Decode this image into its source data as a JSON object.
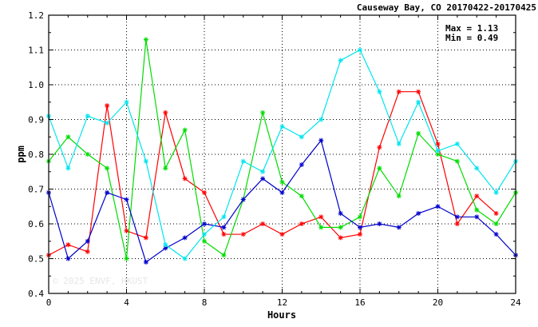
{
  "chart_data": {
    "type": "line",
    "title": "Causeway Bay, CO 20170422-20170425",
    "xlabel": "Hours",
    "ylabel": "ppm",
    "xlim": [
      0,
      24
    ],
    "ylim": [
      0.4,
      1.2
    ],
    "x_ticks": [
      "0",
      "4",
      "8",
      "12",
      "16",
      "20",
      "24"
    ],
    "y_ticks": [
      "0.4",
      "0.5",
      "0.6",
      "0.7",
      "0.8",
      "0.9",
      "1.0",
      "1.1",
      "1.2"
    ],
    "grid": true,
    "stats": {
      "max": "Max = 1.13",
      "min": "Min = 0.49"
    },
    "watermark": "© 2025 ENVF, HKUST",
    "series": [
      {
        "color": "#ff0000",
        "values": [
          0.51,
          0.54,
          0.52,
          0.94,
          0.58,
          0.56,
          0.92,
          0.73,
          0.69,
          0.57,
          0.57,
          0.6,
          0.57,
          0.6,
          0.62,
          0.56,
          0.57,
          0.82,
          0.98,
          0.98,
          0.83,
          0.6,
          0.68,
          0.63
        ]
      },
      {
        "color": "#00dd00",
        "values": [
          0.78,
          0.85,
          0.8,
          0.76,
          0.5,
          1.13,
          0.76,
          0.87,
          0.55,
          0.51,
          0.67,
          0.92,
          0.72,
          0.68,
          0.59,
          0.59,
          0.62,
          0.76,
          0.68,
          0.86,
          0.8,
          0.78,
          0.64,
          0.6,
          0.69
        ]
      },
      {
        "color": "#0000cc",
        "values": [
          0.69,
          0.5,
          0.55,
          0.69,
          0.67,
          0.49,
          0.53,
          0.56,
          0.6,
          0.59,
          0.67,
          0.73,
          0.69,
          0.77,
          0.84,
          0.63,
          0.59,
          0.6,
          0.59,
          0.63,
          0.65,
          0.62,
          0.62,
          0.57,
          0.51
        ]
      },
      {
        "color": "#00e5ee",
        "values": [
          0.91,
          0.76,
          0.91,
          0.89,
          0.95,
          0.78,
          0.54,
          0.5,
          0.57,
          0.62,
          0.78,
          0.75,
          0.88,
          0.85,
          0.9,
          1.07,
          1.1,
          0.98,
          0.83,
          0.95,
          0.81,
          0.83,
          0.76,
          0.69,
          0.78
        ]
      }
    ]
  }
}
